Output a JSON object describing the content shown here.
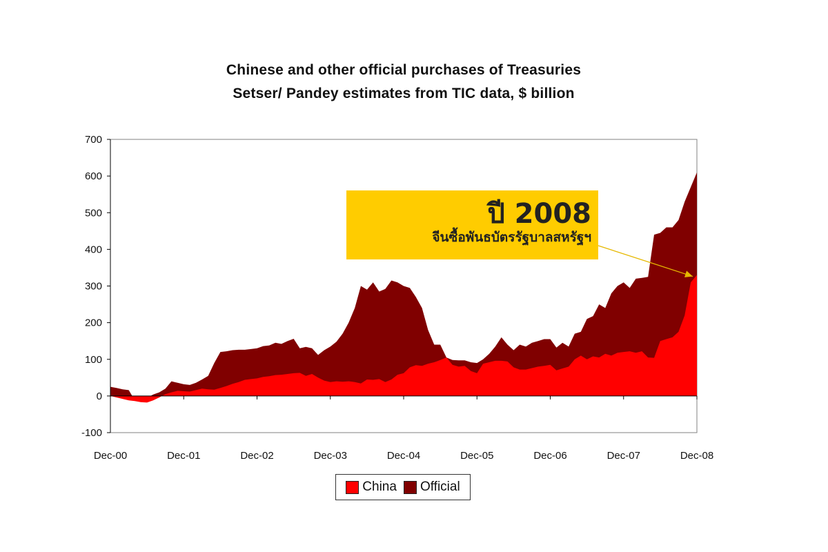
{
  "chart_data": {
    "type": "area",
    "stacked": true,
    "title": "Chinese and other official purchases of Treasuries",
    "subtitle": "Setser/ Pandey estimates from TIC data, $ billion",
    "x_tick_labels": [
      "Dec-00",
      "Dec-01",
      "Dec-02",
      "Dec-03",
      "Dec-04",
      "Dec-05",
      "Dec-06",
      "Dec-07",
      "Dec-08"
    ],
    "y_tick_labels": [
      "700",
      "600",
      "500",
      "400",
      "300",
      "200",
      "100",
      "0",
      "-100"
    ],
    "ylim": [
      -100,
      700
    ],
    "xlim": [
      0,
      96
    ],
    "x_unit": "months since Dec-00",
    "grid": false,
    "legend_position": "bottom-center",
    "series": [
      {
        "name": "China",
        "color": "#ff0000",
        "points": [
          [
            0,
            0
          ],
          [
            1,
            -4
          ],
          [
            2,
            -8
          ],
          [
            3,
            -12
          ],
          [
            4,
            -14
          ],
          [
            5,
            -17
          ],
          [
            6,
            -18
          ],
          [
            7,
            -12
          ],
          [
            8,
            -4
          ],
          [
            9,
            5
          ],
          [
            10,
            10
          ],
          [
            11,
            14
          ],
          [
            12,
            13
          ],
          [
            13,
            12
          ],
          [
            14,
            16
          ],
          [
            15,
            20
          ],
          [
            16,
            18
          ],
          [
            17,
            17
          ],
          [
            18,
            22
          ],
          [
            19,
            27
          ],
          [
            20,
            33
          ],
          [
            21,
            38
          ],
          [
            22,
            44
          ],
          [
            23,
            46
          ],
          [
            24,
            48
          ],
          [
            25,
            52
          ],
          [
            26,
            54
          ],
          [
            27,
            57
          ],
          [
            28,
            58
          ],
          [
            29,
            60
          ],
          [
            30,
            62
          ],
          [
            31,
            63
          ],
          [
            32,
            55
          ],
          [
            33,
            60
          ],
          [
            34,
            50
          ],
          [
            35,
            42
          ],
          [
            36,
            38
          ],
          [
            37,
            40
          ],
          [
            38,
            39
          ],
          [
            39,
            40
          ],
          [
            40,
            38
          ],
          [
            41,
            34
          ],
          [
            42,
            45
          ],
          [
            43,
            44
          ],
          [
            44,
            46
          ],
          [
            45,
            38
          ],
          [
            46,
            45
          ],
          [
            47,
            58
          ],
          [
            48,
            62
          ],
          [
            49,
            78
          ],
          [
            50,
            84
          ],
          [
            51,
            82
          ],
          [
            52,
            88
          ],
          [
            53,
            92
          ],
          [
            54,
            98
          ],
          [
            55,
            105
          ],
          [
            56,
            85
          ],
          [
            57,
            80
          ],
          [
            58,
            82
          ],
          [
            59,
            68
          ],
          [
            60,
            62
          ],
          [
            61,
            88
          ],
          [
            62,
            92
          ],
          [
            63,
            96
          ],
          [
            64,
            96
          ],
          [
            65,
            94
          ],
          [
            66,
            78
          ],
          [
            67,
            72
          ],
          [
            68,
            72
          ],
          [
            69,
            76
          ],
          [
            70,
            80
          ],
          [
            71,
            82
          ],
          [
            72,
            85
          ],
          [
            73,
            70
          ],
          [
            74,
            75
          ],
          [
            75,
            80
          ],
          [
            76,
            100
          ],
          [
            77,
            110
          ],
          [
            78,
            100
          ],
          [
            79,
            108
          ],
          [
            80,
            105
          ],
          [
            81,
            115
          ],
          [
            82,
            110
          ],
          [
            83,
            118
          ],
          [
            84,
            120
          ],
          [
            85,
            122
          ],
          [
            86,
            118
          ],
          [
            87,
            122
          ],
          [
            88,
            105
          ],
          [
            89,
            104
          ],
          [
            90,
            150
          ],
          [
            91,
            155
          ],
          [
            92,
            160
          ],
          [
            93,
            175
          ],
          [
            94,
            220
          ],
          [
            95,
            310
          ],
          [
            96,
            330
          ]
        ]
      },
      {
        "name": "Official",
        "color": "#800000",
        "points": [
          [
            0,
            25
          ],
          [
            1,
            22
          ],
          [
            2,
            18
          ],
          [
            3,
            16
          ],
          [
            4,
            -12
          ],
          [
            5,
            -12
          ],
          [
            6,
            -5
          ],
          [
            7,
            4
          ],
          [
            8,
            10
          ],
          [
            9,
            20
          ],
          [
            10,
            40
          ],
          [
            11,
            36
          ],
          [
            12,
            32
          ],
          [
            13,
            30
          ],
          [
            14,
            36
          ],
          [
            15,
            45
          ],
          [
            16,
            55
          ],
          [
            17,
            90
          ],
          [
            18,
            120
          ],
          [
            19,
            122
          ],
          [
            20,
            125
          ],
          [
            21,
            126
          ],
          [
            22,
            126
          ],
          [
            23,
            128
          ],
          [
            24,
            130
          ],
          [
            25,
            136
          ],
          [
            26,
            138
          ],
          [
            27,
            145
          ],
          [
            28,
            142
          ],
          [
            29,
            150
          ],
          [
            30,
            156
          ],
          [
            31,
            130
          ],
          [
            32,
            134
          ],
          [
            33,
            130
          ],
          [
            34,
            112
          ],
          [
            35,
            125
          ],
          [
            36,
            135
          ],
          [
            37,
            148
          ],
          [
            38,
            170
          ],
          [
            39,
            200
          ],
          [
            40,
            240
          ],
          [
            41,
            300
          ],
          [
            42,
            290
          ],
          [
            43,
            310
          ],
          [
            44,
            285
          ],
          [
            45,
            292
          ],
          [
            46,
            315
          ],
          [
            47,
            310
          ],
          [
            48,
            300
          ],
          [
            49,
            295
          ],
          [
            50,
            270
          ],
          [
            51,
            240
          ],
          [
            52,
            180
          ],
          [
            53,
            140
          ],
          [
            54,
            140
          ],
          [
            55,
            105
          ],
          [
            56,
            98
          ],
          [
            57,
            97
          ],
          [
            58,
            97
          ],
          [
            59,
            92
          ],
          [
            60,
            90
          ],
          [
            61,
            100
          ],
          [
            62,
            115
          ],
          [
            63,
            135
          ],
          [
            64,
            160
          ],
          [
            65,
            140
          ],
          [
            66,
            125
          ],
          [
            67,
            140
          ],
          [
            68,
            135
          ],
          [
            69,
            145
          ],
          [
            70,
            150
          ],
          [
            71,
            155
          ],
          [
            72,
            155
          ],
          [
            73,
            132
          ],
          [
            74,
            145
          ],
          [
            75,
            135
          ],
          [
            76,
            170
          ],
          [
            77,
            175
          ],
          [
            78,
            210
          ],
          [
            79,
            218
          ],
          [
            80,
            250
          ],
          [
            81,
            240
          ],
          [
            82,
            280
          ],
          [
            83,
            300
          ],
          [
            84,
            310
          ],
          [
            85,
            295
          ],
          [
            86,
            320
          ],
          [
            87,
            322
          ],
          [
            88,
            325
          ],
          [
            89,
            440
          ],
          [
            90,
            445
          ],
          [
            91,
            460
          ],
          [
            92,
            460
          ],
          [
            93,
            480
          ],
          [
            94,
            530
          ],
          [
            95,
            570
          ],
          [
            96,
            610
          ]
        ]
      }
    ],
    "annotation": {
      "heading": "ปี 2008",
      "text": "จีนซื้อพันธบัตรรัฐบาลสหรัฐฯ",
      "box_color": "#ffcc00",
      "arrow_color": "#e6b800",
      "points_to": [
        96,
        330
      ]
    }
  }
}
